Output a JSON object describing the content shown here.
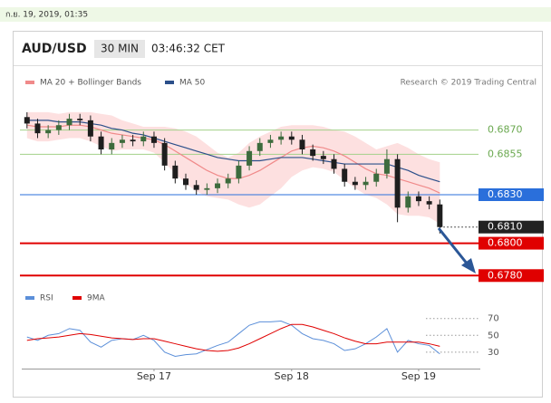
{
  "timestamp": "ก.ย. 19, 2019, 01:35",
  "chart_data": [
    {
      "type": "candlestick",
      "title": "AUD/USD",
      "interval": "30 MIN",
      "time": "03:46:32 CET",
      "credit": "Research © 2019 Trading Central",
      "categories": [
        null,
        null,
        null,
        null,
        null,
        null,
        null,
        null,
        null,
        null,
        null,
        null,
        "Sep 17",
        null,
        null,
        null,
        null,
        null,
        null,
        null,
        null,
        null,
        null,
        null,
        null,
        "Sep 18",
        null,
        null,
        null,
        null,
        null,
        null,
        null,
        null,
        null,
        null,
        null,
        "Sep 19",
        null,
        null
      ],
      "open": [
        0.6878,
        0.6874,
        0.6868,
        0.687,
        0.6873,
        0.6877,
        0.6876,
        0.6866,
        0.6858,
        0.6862,
        0.6864,
        0.6863,
        0.6866,
        0.6862,
        0.6848,
        0.684,
        0.6836,
        0.6833,
        0.6834,
        0.6837,
        0.684,
        0.6848,
        0.6857,
        0.6862,
        0.6864,
        0.6866,
        0.6864,
        0.6858,
        0.6854,
        0.6852,
        0.6846,
        0.6838,
        0.6836,
        0.6838,
        0.6843,
        0.6852,
        0.6822,
        0.6829,
        0.6826,
        0.6824
      ],
      "high": [
        0.6881,
        0.6877,
        0.6873,
        0.6876,
        0.688,
        0.688,
        0.6879,
        0.6869,
        0.6865,
        0.6867,
        0.6867,
        0.6869,
        0.6869,
        0.6865,
        0.6851,
        0.6843,
        0.6839,
        0.6837,
        0.684,
        0.6843,
        0.6851,
        0.686,
        0.6865,
        0.6867,
        0.6869,
        0.6869,
        0.6867,
        0.6861,
        0.6857,
        0.6855,
        0.6849,
        0.6841,
        0.6841,
        0.6846,
        0.6858,
        0.6855,
        0.6832,
        0.6832,
        0.6829,
        0.6827
      ],
      "low": [
        0.6871,
        0.6865,
        0.6865,
        0.6867,
        0.687,
        0.6873,
        0.6863,
        0.6855,
        0.6855,
        0.6859,
        0.686,
        0.686,
        0.6859,
        0.6845,
        0.6837,
        0.6833,
        0.683,
        0.683,
        0.6831,
        0.6834,
        0.6837,
        0.6845,
        0.6854,
        0.6859,
        0.6861,
        0.6861,
        0.6855,
        0.6851,
        0.6849,
        0.6843,
        0.6835,
        0.6833,
        0.6833,
        0.6835,
        0.684,
        0.6813,
        0.6819,
        0.6823,
        0.6821,
        0.6806
      ],
      "close": [
        0.6874,
        0.6868,
        0.687,
        0.6873,
        0.6877,
        0.6876,
        0.6866,
        0.6858,
        0.6862,
        0.6864,
        0.6863,
        0.6866,
        0.6862,
        0.6848,
        0.684,
        0.6836,
        0.6833,
        0.6834,
        0.6837,
        0.684,
        0.6848,
        0.6857,
        0.6862,
        0.6864,
        0.6866,
        0.6864,
        0.6858,
        0.6854,
        0.6852,
        0.6846,
        0.6838,
        0.6836,
        0.6838,
        0.6843,
        0.6852,
        0.6822,
        0.6829,
        0.6826,
        0.6824,
        0.681
      ],
      "up_color": "#3d6b3d",
      "down_color": "#1e1e1e",
      "series": [
        {
          "name": "MA 20 + Bollinger Bands",
          "color": "#f08a8a",
          "band_color": "#fde0e0",
          "values": [
            0.6873,
            0.6872,
            0.6872,
            0.6872,
            0.6873,
            0.6873,
            0.6872,
            0.687,
            0.6868,
            0.6867,
            0.6866,
            0.6865,
            0.6864,
            0.6861,
            0.6857,
            0.6853,
            0.6849,
            0.6845,
            0.6842,
            0.684,
            0.684,
            0.6842,
            0.6845,
            0.6849,
            0.6853,
            0.6857,
            0.6859,
            0.686,
            0.6859,
            0.6857,
            0.6854,
            0.685,
            0.6846,
            0.6843,
            0.6842,
            0.684,
            0.6838,
            0.6836,
            0.6834,
            0.6831
          ],
          "upper": [
            0.6881,
            0.6881,
            0.6881,
            0.688,
            0.6881,
            0.6881,
            0.6881,
            0.688,
            0.6879,
            0.6876,
            0.6874,
            0.6872,
            0.6872,
            0.6872,
            0.6871,
            0.6869,
            0.6866,
            0.6861,
            0.6856,
            0.6853,
            0.6856,
            0.6862,
            0.6866,
            0.6869,
            0.6872,
            0.6873,
            0.6873,
            0.6873,
            0.6872,
            0.687,
            0.6869,
            0.6866,
            0.6862,
            0.6858,
            0.686,
            0.6862,
            0.6859,
            0.6855,
            0.6852,
            0.685
          ],
          "lower": [
            0.6865,
            0.6863,
            0.6863,
            0.6864,
            0.6865,
            0.6865,
            0.6863,
            0.686,
            0.6857,
            0.6858,
            0.6858,
            0.6858,
            0.6856,
            0.685,
            0.6843,
            0.6837,
            0.6832,
            0.6829,
            0.6828,
            0.6827,
            0.6824,
            0.6822,
            0.6824,
            0.6829,
            0.6834,
            0.6841,
            0.6845,
            0.6847,
            0.6846,
            0.6844,
            0.6839,
            0.6834,
            0.683,
            0.6828,
            0.6824,
            0.6818,
            0.6817,
            0.6817,
            0.6816,
            0.6812
          ]
        },
        {
          "name": "MA 50",
          "color": "#2b4f8a",
          "values": [
            0.6876,
            0.6876,
            0.6876,
            0.6875,
            0.6875,
            0.6875,
            0.6874,
            0.6873,
            0.6871,
            0.687,
            0.6868,
            0.6867,
            0.6865,
            0.6863,
            0.6861,
            0.6859,
            0.6857,
            0.6855,
            0.6853,
            0.6852,
            0.6851,
            0.6851,
            0.6851,
            0.6852,
            0.6853,
            0.6853,
            0.6853,
            0.6852,
            0.6851,
            0.685,
            0.6849,
            0.6849,
            0.6849,
            0.6849,
            0.6849,
            0.6847,
            0.6845,
            0.6842,
            0.684,
            0.6838
          ]
        }
      ],
      "levels": [
        {
          "value": 0.687,
          "label": "0.6870",
          "color": "#a3d18a",
          "line": "thin",
          "boxed": false
        },
        {
          "value": 0.6855,
          "label": "0.6855",
          "color": "#a3d18a",
          "line": "thin",
          "boxed": false
        },
        {
          "value": 0.683,
          "label": "0.6830",
          "color": "#2a6fdb",
          "line": "thin",
          "boxed": true
        },
        {
          "value": 0.681,
          "label": "0.6810",
          "color": "#222222",
          "line": "dotted",
          "boxed": true
        },
        {
          "value": 0.68,
          "label": "0.6800",
          "color": "#e00000",
          "line": "thick",
          "boxed": true
        },
        {
          "value": 0.678,
          "label": "0.6780",
          "color": "#e00000",
          "line": "thick",
          "boxed": true
        }
      ],
      "ylim": [
        0.6774,
        0.6886
      ]
    },
    {
      "type": "line",
      "series": [
        {
          "name": "RSI",
          "color": "#5b8fd9",
          "values": [
            48,
            44,
            50,
            52,
            58,
            56,
            42,
            36,
            44,
            46,
            45,
            50,
            44,
            30,
            25,
            27,
            28,
            33,
            38,
            42,
            52,
            62,
            66,
            66,
            67,
            62,
            52,
            46,
            44,
            40,
            32,
            34,
            40,
            48,
            58,
            30,
            44,
            40,
            38,
            28
          ]
        },
        {
          "name": "9MA",
          "color": "#e00000",
          "values": [
            44,
            46,
            47,
            48,
            50,
            52,
            51,
            49,
            47,
            46,
            45,
            46,
            46,
            43,
            40,
            37,
            34,
            32,
            31,
            32,
            35,
            40,
            46,
            52,
            58,
            63,
            63,
            60,
            56,
            52,
            47,
            43,
            40,
            40,
            42,
            42,
            42,
            42,
            40,
            37
          ]
        }
      ],
      "ylim": [
        18,
        88
      ],
      "yticks": [
        30,
        50,
        70
      ]
    }
  ]
}
